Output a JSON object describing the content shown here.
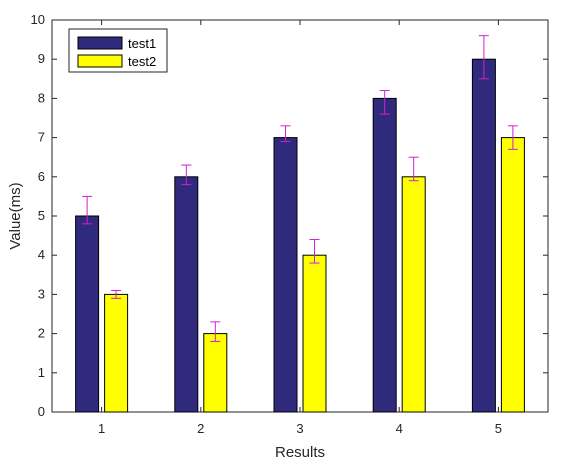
{
  "chart_data": {
    "type": "bar",
    "title": "",
    "xlabel": "Results",
    "ylabel": "Value(ms)",
    "categories": [
      "1",
      "2",
      "3",
      "4",
      "5"
    ],
    "ylim": [
      0,
      10
    ],
    "yticks": [
      "0",
      "1",
      "2",
      "3",
      "4",
      "5",
      "6",
      "7",
      "8",
      "9",
      "10"
    ],
    "grid": false,
    "legend_position": "top-left",
    "series": [
      {
        "name": "test1",
        "color": "#302a7d",
        "values": [
          5,
          6,
          7,
          8,
          9
        ],
        "error_low": [
          4.8,
          5.8,
          6.9,
          7.6,
          8.5
        ],
        "error_high": [
          5.5,
          6.3,
          7.3,
          8.2,
          9.6
        ]
      },
      {
        "name": "test2",
        "color": "#ffff00",
        "values": [
          3,
          2,
          4,
          6,
          7
        ],
        "error_low": [
          2.9,
          1.8,
          3.8,
          5.9,
          6.7
        ],
        "error_high": [
          3.1,
          2.3,
          4.4,
          6.5,
          7.3
        ]
      }
    ],
    "error_bar_color": "#d11fd1"
  }
}
